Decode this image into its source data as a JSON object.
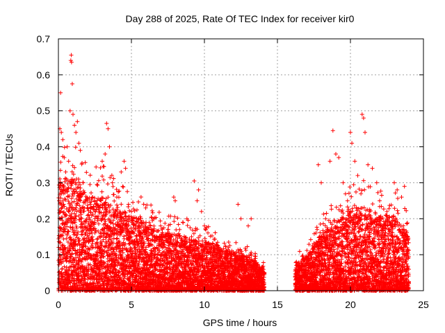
{
  "chart_data": {
    "type": "scatter",
    "title": "Day 288 of 2025, Rate Of TEC Index for receiver kir0",
    "xlabel": "GPS time / hours",
    "ylabel": "ROTI / TECUs",
    "xlim": [
      0,
      25
    ],
    "ylim": [
      0,
      0.7
    ],
    "xticks": [
      0,
      5,
      10,
      15,
      20,
      25
    ],
    "yticks": [
      0,
      0.1,
      0.2,
      0.3,
      0.4,
      0.5,
      0.6,
      0.7
    ],
    "xtick_labels": [
      "0",
      "5",
      "10",
      "15",
      "20",
      "25"
    ],
    "ytick_labels": [
      "0",
      "0.1",
      "0.2",
      "0.3",
      "0.4",
      "0.5",
      "0.6",
      "0.7"
    ],
    "grid": true,
    "marker": "+",
    "marker_color": "#ff0000",
    "series": [
      {
        "name": "ROTI",
        "data_gap_hours": [
          14.1,
          16.2
        ],
        "points": [
          [
            0.05,
            0.25
          ],
          [
            0.1,
            0.45
          ],
          [
            0.15,
            0.55
          ],
          [
            0.2,
            0.44
          ],
          [
            0.3,
            0.42
          ],
          [
            0.4,
            0.37
          ],
          [
            0.5,
            0.33
          ],
          [
            0.6,
            0.4
          ],
          [
            0.7,
            0.36
          ],
          [
            0.8,
            0.5
          ],
          [
            0.85,
            0.64
          ],
          [
            0.88,
            0.655
          ],
          [
            0.9,
            0.635
          ],
          [
            0.95,
            0.575
          ],
          [
            1.0,
            0.49
          ],
          [
            1.1,
            0.46
          ],
          [
            1.2,
            0.44
          ],
          [
            1.3,
            0.47
          ],
          [
            1.4,
            0.41
          ],
          [
            1.5,
            0.39
          ],
          [
            1.7,
            0.3
          ],
          [
            2.0,
            0.25
          ],
          [
            2.2,
            0.24
          ],
          [
            2.5,
            0.2
          ],
          [
            2.8,
            0.23
          ],
          [
            3.0,
            0.36
          ],
          [
            3.2,
            0.38
          ],
          [
            3.3,
            0.465
          ],
          [
            3.4,
            0.45
          ],
          [
            3.5,
            0.4
          ],
          [
            3.7,
            0.3
          ],
          [
            4.0,
            0.26
          ],
          [
            4.3,
            0.33
          ],
          [
            4.5,
            0.36
          ],
          [
            4.6,
            0.34
          ],
          [
            4.8,
            0.24
          ],
          [
            5.0,
            0.22
          ],
          [
            5.5,
            0.2
          ],
          [
            6.0,
            0.19
          ],
          [
            6.5,
            0.2
          ],
          [
            7.0,
            0.18
          ],
          [
            7.5,
            0.17
          ],
          [
            7.9,
            0.26
          ],
          [
            8.0,
            0.25
          ],
          [
            8.3,
            0.17
          ],
          [
            8.8,
            0.2
          ],
          [
            9.3,
            0.305
          ],
          [
            9.5,
            0.25
          ],
          [
            9.6,
            0.28
          ],
          [
            9.8,
            0.22
          ],
          [
            10.0,
            0.18
          ],
          [
            10.5,
            0.12
          ],
          [
            11.0,
            0.11
          ],
          [
            11.5,
            0.1
          ],
          [
            12.0,
            0.1
          ],
          [
            12.3,
            0.24
          ],
          [
            12.5,
            0.2
          ],
          [
            13.0,
            0.18
          ],
          [
            13.2,
            0.2
          ],
          [
            13.5,
            0.09
          ],
          [
            14.0,
            0.06
          ],
          [
            16.3,
            0.08
          ],
          [
            16.8,
            0.09
          ],
          [
            17.2,
            0.1
          ],
          [
            17.5,
            0.12
          ],
          [
            17.8,
            0.35
          ],
          [
            18.0,
            0.3
          ],
          [
            18.3,
            0.2
          ],
          [
            18.6,
            0.36
          ],
          [
            18.8,
            0.445
          ],
          [
            19.0,
            0.38
          ],
          [
            19.2,
            0.37
          ],
          [
            19.5,
            0.3
          ],
          [
            19.8,
            0.25
          ],
          [
            20.0,
            0.44
          ],
          [
            20.1,
            0.41
          ],
          [
            20.3,
            0.36
          ],
          [
            20.5,
            0.32
          ],
          [
            20.8,
            0.49
          ],
          [
            20.9,
            0.48
          ],
          [
            21.0,
            0.44
          ],
          [
            21.2,
            0.35
          ],
          [
            21.5,
            0.34
          ],
          [
            21.8,
            0.3
          ],
          [
            22.0,
            0.25
          ],
          [
            22.5,
            0.22
          ],
          [
            23.0,
            0.3
          ],
          [
            23.2,
            0.28
          ],
          [
            23.5,
            0.26
          ],
          [
            23.7,
            0.29
          ],
          [
            23.9,
            0.15
          ]
        ],
        "dense_band": {
          "description_values": "dense scatter of small ROTI values filling each hour bin from 0 up to the envelope",
          "envelope_hours": [
            0,
            1,
            2,
            3,
            4,
            5,
            6,
            7,
            8,
            9,
            10,
            11,
            12,
            13,
            14,
            16.2,
            17,
            18,
            19,
            20,
            21,
            22,
            23,
            24
          ],
          "envelope_max": [
            0.3,
            0.3,
            0.25,
            0.25,
            0.22,
            0.2,
            0.18,
            0.16,
            0.15,
            0.14,
            0.13,
            0.12,
            0.1,
            0.09,
            0.06,
            0.07,
            0.09,
            0.15,
            0.18,
            0.22,
            0.22,
            0.2,
            0.2,
            0.15
          ]
        }
      }
    ]
  }
}
